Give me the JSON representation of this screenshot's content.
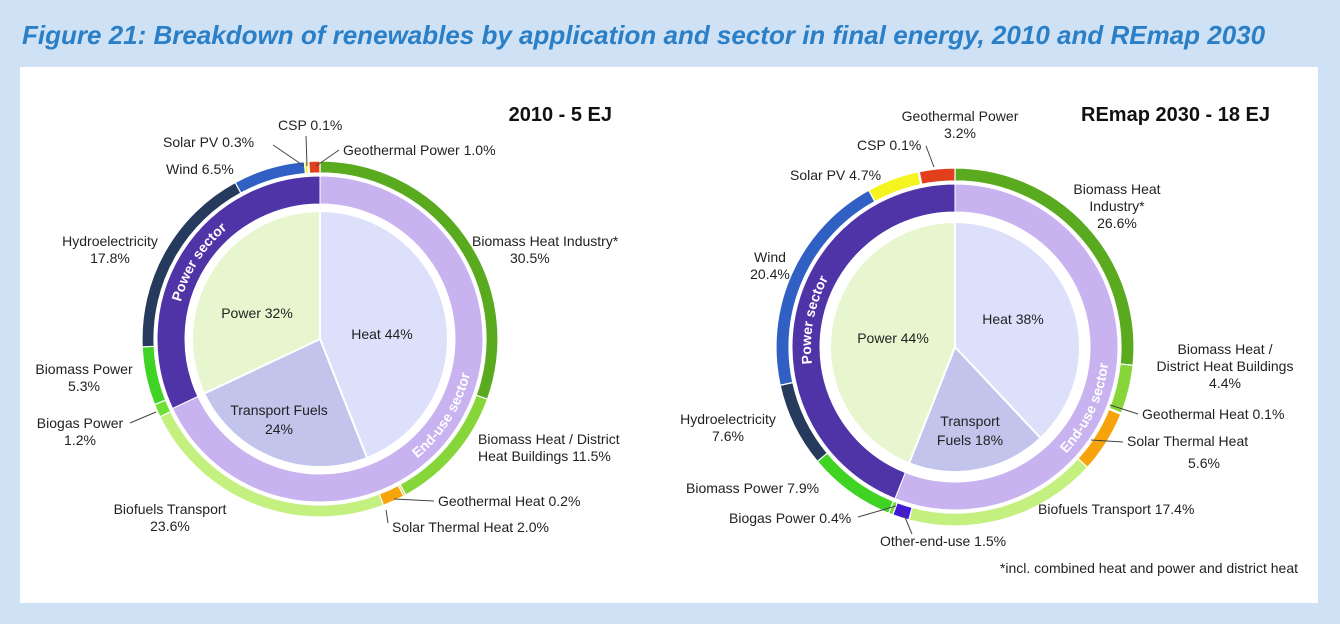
{
  "figure_title": "Figure 21: Breakdown of renewables by application and sector in final energy, 2010 and REmap 2030",
  "footnote": "*incl. combined heat and power and district heat",
  "chart_data": [
    {
      "type": "pie",
      "title": "2010 - 5 EJ",
      "total_EJ": 5,
      "outer_ring": [
        {
          "name": "Biomass Heat Industry*",
          "value": 30.5,
          "label": "Biomass Heat Industry* 30.5%",
          "color": "#5aaa1f"
        },
        {
          "name": "Biomass Heat / District Heat Buildings",
          "value": 11.5,
          "label": "Biomass Heat / District Heat Buildings 11.5%",
          "color": "#86d63a"
        },
        {
          "name": "Geothermal Heat",
          "value": 0.2,
          "label": "Geothermal Heat 0.2%",
          "color": "#f2c12e"
        },
        {
          "name": "Solar Thermal Heat",
          "value": 2.0,
          "label": "Solar Thermal Heat 2.0%",
          "color": "#f7a30c"
        },
        {
          "name": "Biofuels Transport",
          "value": 23.6,
          "label": "Biofuels Transport 23.6%",
          "color": "#c3f07e"
        },
        {
          "name": "Biogas Power",
          "value": 1.2,
          "label": "Biogas Power 1.2%",
          "color": "#6fe036"
        },
        {
          "name": "Biomass Power",
          "value": 5.3,
          "label": "Biomass Power 5.3%",
          "color": "#3fd324"
        },
        {
          "name": "Hydroelectricity",
          "value": 17.8,
          "label": "Hydroelectricity 17.8%",
          "color": "#263a5e"
        },
        {
          "name": "Wind",
          "value": 6.5,
          "label": "Wind 6.5%",
          "color": "#3160c4"
        },
        {
          "name": "Solar PV",
          "value": 0.3,
          "label": "Solar PV 0.3%",
          "color": "#f4f41e"
        },
        {
          "name": "CSP",
          "value": 0.1,
          "label": "CSP 0.1%",
          "color": "#e85d2b"
        },
        {
          "name": "Geothermal Power",
          "value": 1.0,
          "label": "Geothermal Power 1.0%",
          "color": "#e2401c"
        }
      ],
      "sector_ring": [
        {
          "name": "End-use sector",
          "value": 68,
          "label": "End-use sector",
          "color": "#c8b3f0"
        },
        {
          "name": "Power sector",
          "value": 32,
          "label": "Power sector",
          "color": "#4f34a8"
        }
      ],
      "inner_pie": [
        {
          "name": "Heat",
          "value": 44,
          "label": "Heat 44%",
          "color": "#dde0fa"
        },
        {
          "name": "Transport Fuels",
          "value": 24,
          "label": "Transport Fuels 24%",
          "color": "#c2c4ec"
        },
        {
          "name": "Power",
          "value": 32,
          "label": "Power 32%",
          "color": "#e8f6cf"
        }
      ]
    },
    {
      "type": "pie",
      "title": "REmap 2030 - 18 EJ",
      "total_EJ": 18,
      "outer_ring": [
        {
          "name": "Biomass Heat Industry*",
          "value": 26.6,
          "label": "Biomass Heat Industry* 26.6%",
          "color": "#5aaa1f"
        },
        {
          "name": "Biomass Heat / District Heat Buildings",
          "value": 4.4,
          "label": "Biomass Heat / District Heat Buildings 4.4%",
          "color": "#86d63a"
        },
        {
          "name": "Geothermal Heat",
          "value": 0.1,
          "label": "Geothermal Heat 0.1%",
          "color": "#f2c12e"
        },
        {
          "name": "Solar Thermal Heat",
          "value": 5.6,
          "label": "Solar Thermal Heat 5.6%",
          "color": "#f7a30c"
        },
        {
          "name": "Biofuels Transport",
          "value": 17.4,
          "label": "Biofuels Transport 17.4%",
          "color": "#c3f07e"
        },
        {
          "name": "Other-end-use",
          "value": 1.5,
          "label": "Other-end-use 1.5%",
          "color": "#4318d8"
        },
        {
          "name": "Biogas Power",
          "value": 0.4,
          "label": "Biogas Power 0.4%",
          "color": "#6fe036"
        },
        {
          "name": "Biomass Power",
          "value": 7.9,
          "label": "Biomass Power 7.9%",
          "color": "#3fd324"
        },
        {
          "name": "Hydroelectricity",
          "value": 7.6,
          "label": "Hydroelectricity 7.6%",
          "color": "#263a5e"
        },
        {
          "name": "Wind",
          "value": 20.4,
          "label": "Wind 20.4%",
          "color": "#3160c4"
        },
        {
          "name": "Solar PV",
          "value": 4.7,
          "label": "Solar PV 4.7%",
          "color": "#f4f41e"
        },
        {
          "name": "CSP",
          "value": 0.1,
          "label": "CSP 0.1%",
          "color": "#e85d2b"
        },
        {
          "name": "Geothermal Power",
          "value": 3.2,
          "label": "Geothermal Power 3.2%",
          "color": "#e2401c"
        }
      ],
      "sector_ring": [
        {
          "name": "End-use sector",
          "value": 56,
          "label": "End-use sector",
          "color": "#c8b3f0"
        },
        {
          "name": "Power sector",
          "value": 44,
          "label": "Power sector",
          "color": "#4f34a8"
        }
      ],
      "inner_pie": [
        {
          "name": "Heat",
          "value": 38,
          "label": "Heat 38%",
          "color": "#dde0fa"
        },
        {
          "name": "Transport Fuels",
          "value": 18,
          "label": "Transport Fuels 18%",
          "color": "#c2c4ec"
        },
        {
          "name": "Power",
          "value": 44,
          "label": "Power 44%",
          "color": "#e8f6cf"
        }
      ]
    }
  ]
}
